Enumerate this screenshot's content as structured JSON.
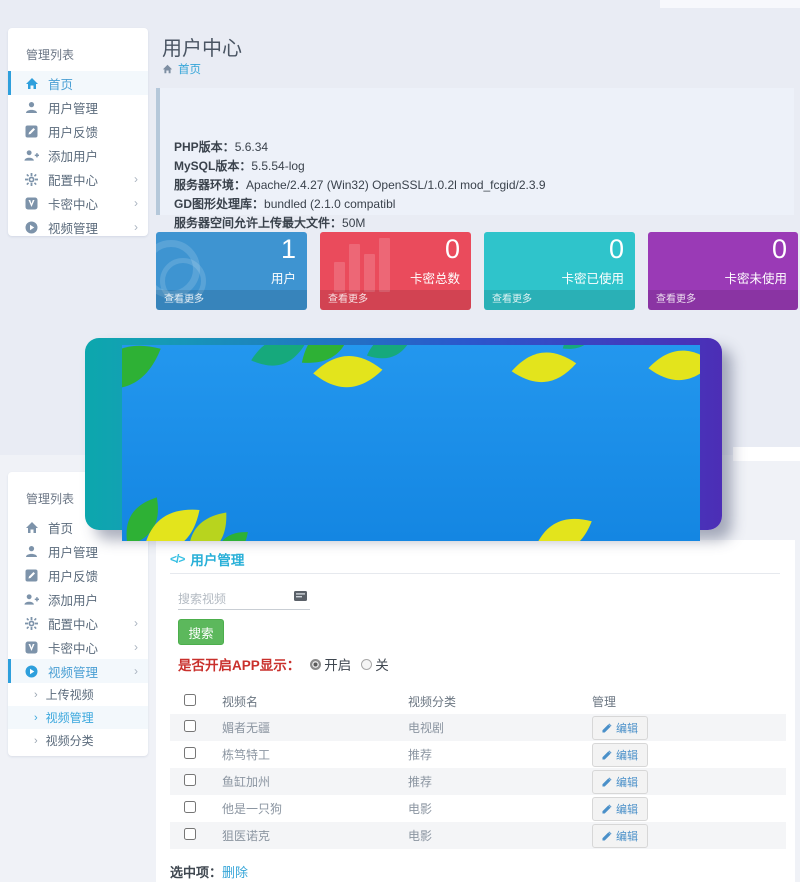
{
  "colors": {
    "accent_blue": "#2e9fdc",
    "card_users": "#3e94d1",
    "card_total": "#ea4b5c",
    "card_used": "#2fc4cb",
    "card_unused": "#9a3ab6",
    "button_green": "#5cb85c",
    "warn_red": "#c9302c"
  },
  "header": {
    "title": "用户中心",
    "breadcrumb_home": "首页",
    "home_icon": "home-icon"
  },
  "sidebar": {
    "header": "管理列表",
    "items": [
      {
        "label": "首页",
        "icon": "home-icon",
        "chevron": false
      },
      {
        "label": "用户管理",
        "icon": "user-icon",
        "chevron": false
      },
      {
        "label": "用户反馈",
        "icon": "feedback-pencil-icon",
        "chevron": false
      },
      {
        "label": "添加用户",
        "icon": "user-plus-icon",
        "chevron": false
      },
      {
        "label": "配置中心",
        "icon": "gear-icon",
        "chevron": true
      },
      {
        "label": "卡密中心",
        "icon": "card-key-icon",
        "chevron": true
      },
      {
        "label": "视频管理",
        "icon": "video-play-icon",
        "chevron": true
      }
    ],
    "video_children": [
      "上传视频",
      "视频管理",
      "视频分类"
    ]
  },
  "server_info": {
    "lines": [
      {
        "label": "PHP版本",
        "value": "5.6.34"
      },
      {
        "label": "MySQL版本",
        "value": "5.5.54-log"
      },
      {
        "label": "服务器环境",
        "value": "Apache/2.4.27 (Win32) OpenSSL/1.0.2l mod_fcgid/2.3.9"
      },
      {
        "label": "GD图形处理库",
        "value": "bundled (2.1.0 compatibl"
      },
      {
        "label": "服务器空间允许上传最大文件",
        "value": "50M"
      }
    ]
  },
  "stats": {
    "more_label": "查看更多",
    "cards": [
      {
        "value": "1",
        "label": "用户",
        "color": "#3e94d1",
        "ghost": "circles-icon"
      },
      {
        "value": "0",
        "label": "卡密总数",
        "color": "#ea4b5c",
        "ghost": "bars-icon"
      },
      {
        "value": "0",
        "label": "卡密已使用",
        "color": "#2fc4cb",
        "ghost": "none"
      },
      {
        "value": "0",
        "label": "卡密未使用",
        "color": "#9a3ab6",
        "ghost": "none"
      }
    ]
  },
  "video_admin": {
    "section_title": "用户管理",
    "section_icon": "code-icon",
    "search_placeholder": "搜索视频",
    "search_button": "搜索",
    "app_display_label": "是否开启APP显示：",
    "radio_on_label": "开启",
    "radio_off_label": "关",
    "radio_selected": "开启",
    "table": {
      "headers": [
        "视频名",
        "视频分类",
        "管理"
      ],
      "edit_label": "编辑",
      "rows": [
        {
          "name": "媚者无疆",
          "category": "电视剧"
        },
        {
          "name": "栋笃特工",
          "category": "推荐"
        },
        {
          "name": "鱼缸加州",
          "category": "推荐"
        },
        {
          "name": "他是一只狗",
          "category": "电影"
        },
        {
          "name": "狙医诺克",
          "category": "电影"
        }
      ]
    },
    "selected_label": "选中项：",
    "delete_link": "删除"
  }
}
